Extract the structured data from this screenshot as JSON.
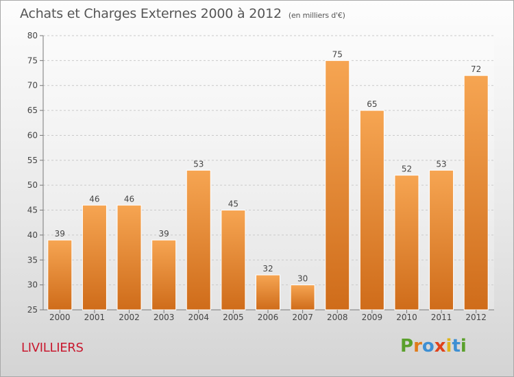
{
  "header": {
    "title": "Achats et Charges Externes 2000 à 2012",
    "unit": "(en milliers d'€)"
  },
  "footer": {
    "location": "LIVILLIERS",
    "logo_text": "Proxiti"
  },
  "colors": {
    "bar_top": "#f6a552",
    "bar_bottom": "#cf6c1a",
    "location_text": "#c8182e",
    "logo_letters": [
      "#5aa02c",
      "#e07b1a",
      "#3d8fd3",
      "#e0421a",
      "#e0b41a",
      "#3d8fd3",
      "#5aa02c"
    ]
  },
  "chart_data": {
    "type": "bar",
    "categories": [
      "2000",
      "2001",
      "2002",
      "2003",
      "2004",
      "2005",
      "2006",
      "2007",
      "2008",
      "2009",
      "2010",
      "2011",
      "2012"
    ],
    "values": [
      39,
      46,
      46,
      39,
      53,
      45,
      32,
      30,
      75,
      65,
      52,
      53,
      72
    ],
    "ylim": [
      25,
      80
    ],
    "yticks": [
      "25",
      "30",
      "35",
      "40",
      "45",
      "50",
      "55",
      "60",
      "65",
      "70",
      "75",
      "80"
    ],
    "grid": true,
    "xlabel": "",
    "ylabel": ""
  }
}
